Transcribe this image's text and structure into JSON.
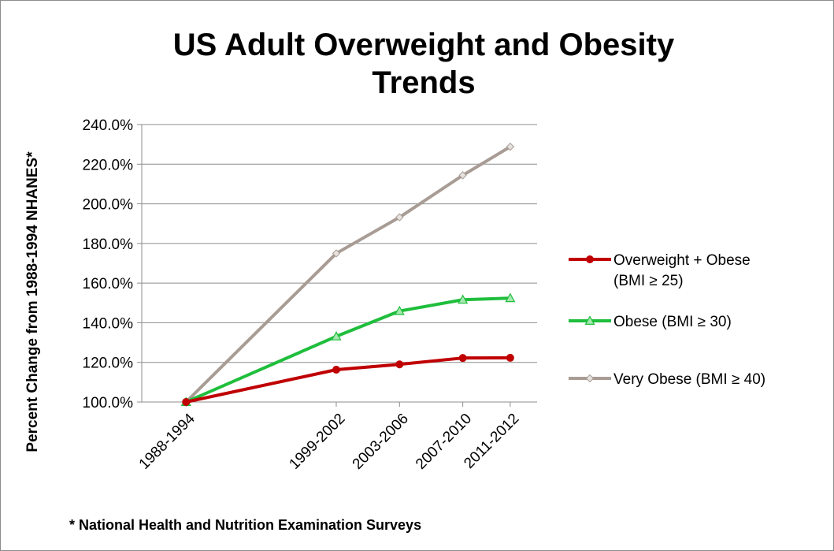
{
  "chart_data": {
    "type": "line",
    "title_lines": [
      "US Adult Overweight and Obesity",
      "Trends"
    ],
    "ylabel": "Percent Change from 1988-1994 NHANES*",
    "xlabel": "",
    "categories": [
      "1988-1994",
      "1999-2002",
      "2003-2006",
      "2007-2010",
      "2011-2012"
    ],
    "x_years": [
      1991,
      2000.5,
      2004.5,
      2008.5,
      2011.5
    ],
    "ylim": [
      100,
      240
    ],
    "ytick_step": 20,
    "ytick_labels": [
      "100.0%",
      "120.0%",
      "140.0%",
      "160.0%",
      "180.0%",
      "200.0%",
      "220.0%",
      "240.0%"
    ],
    "grid": true,
    "legend_position": "right",
    "series": [
      {
        "name_lines": [
          "Overweight + Obese",
          "(BMI ≥ 25)"
        ],
        "values": [
          100,
          116.3,
          119.0,
          122.2,
          122.3
        ],
        "color": "#c00000",
        "marker": "circle"
      },
      {
        "name_lines": [
          "Obese  (BMI ≥ 30)"
        ],
        "values": [
          100,
          133.1,
          145.9,
          151.6,
          152.4
        ],
        "color": "#1fbe3c",
        "marker": "triangle"
      },
      {
        "name_lines": [
          "Very Obese (BMI ≥ 40)"
        ],
        "values": [
          100,
          175.0,
          193.2,
          214.4,
          228.8
        ],
        "color": "#a89c94",
        "marker": "diamond"
      }
    ],
    "footnote": "* National Health and Nutrition Examination Surveys"
  }
}
